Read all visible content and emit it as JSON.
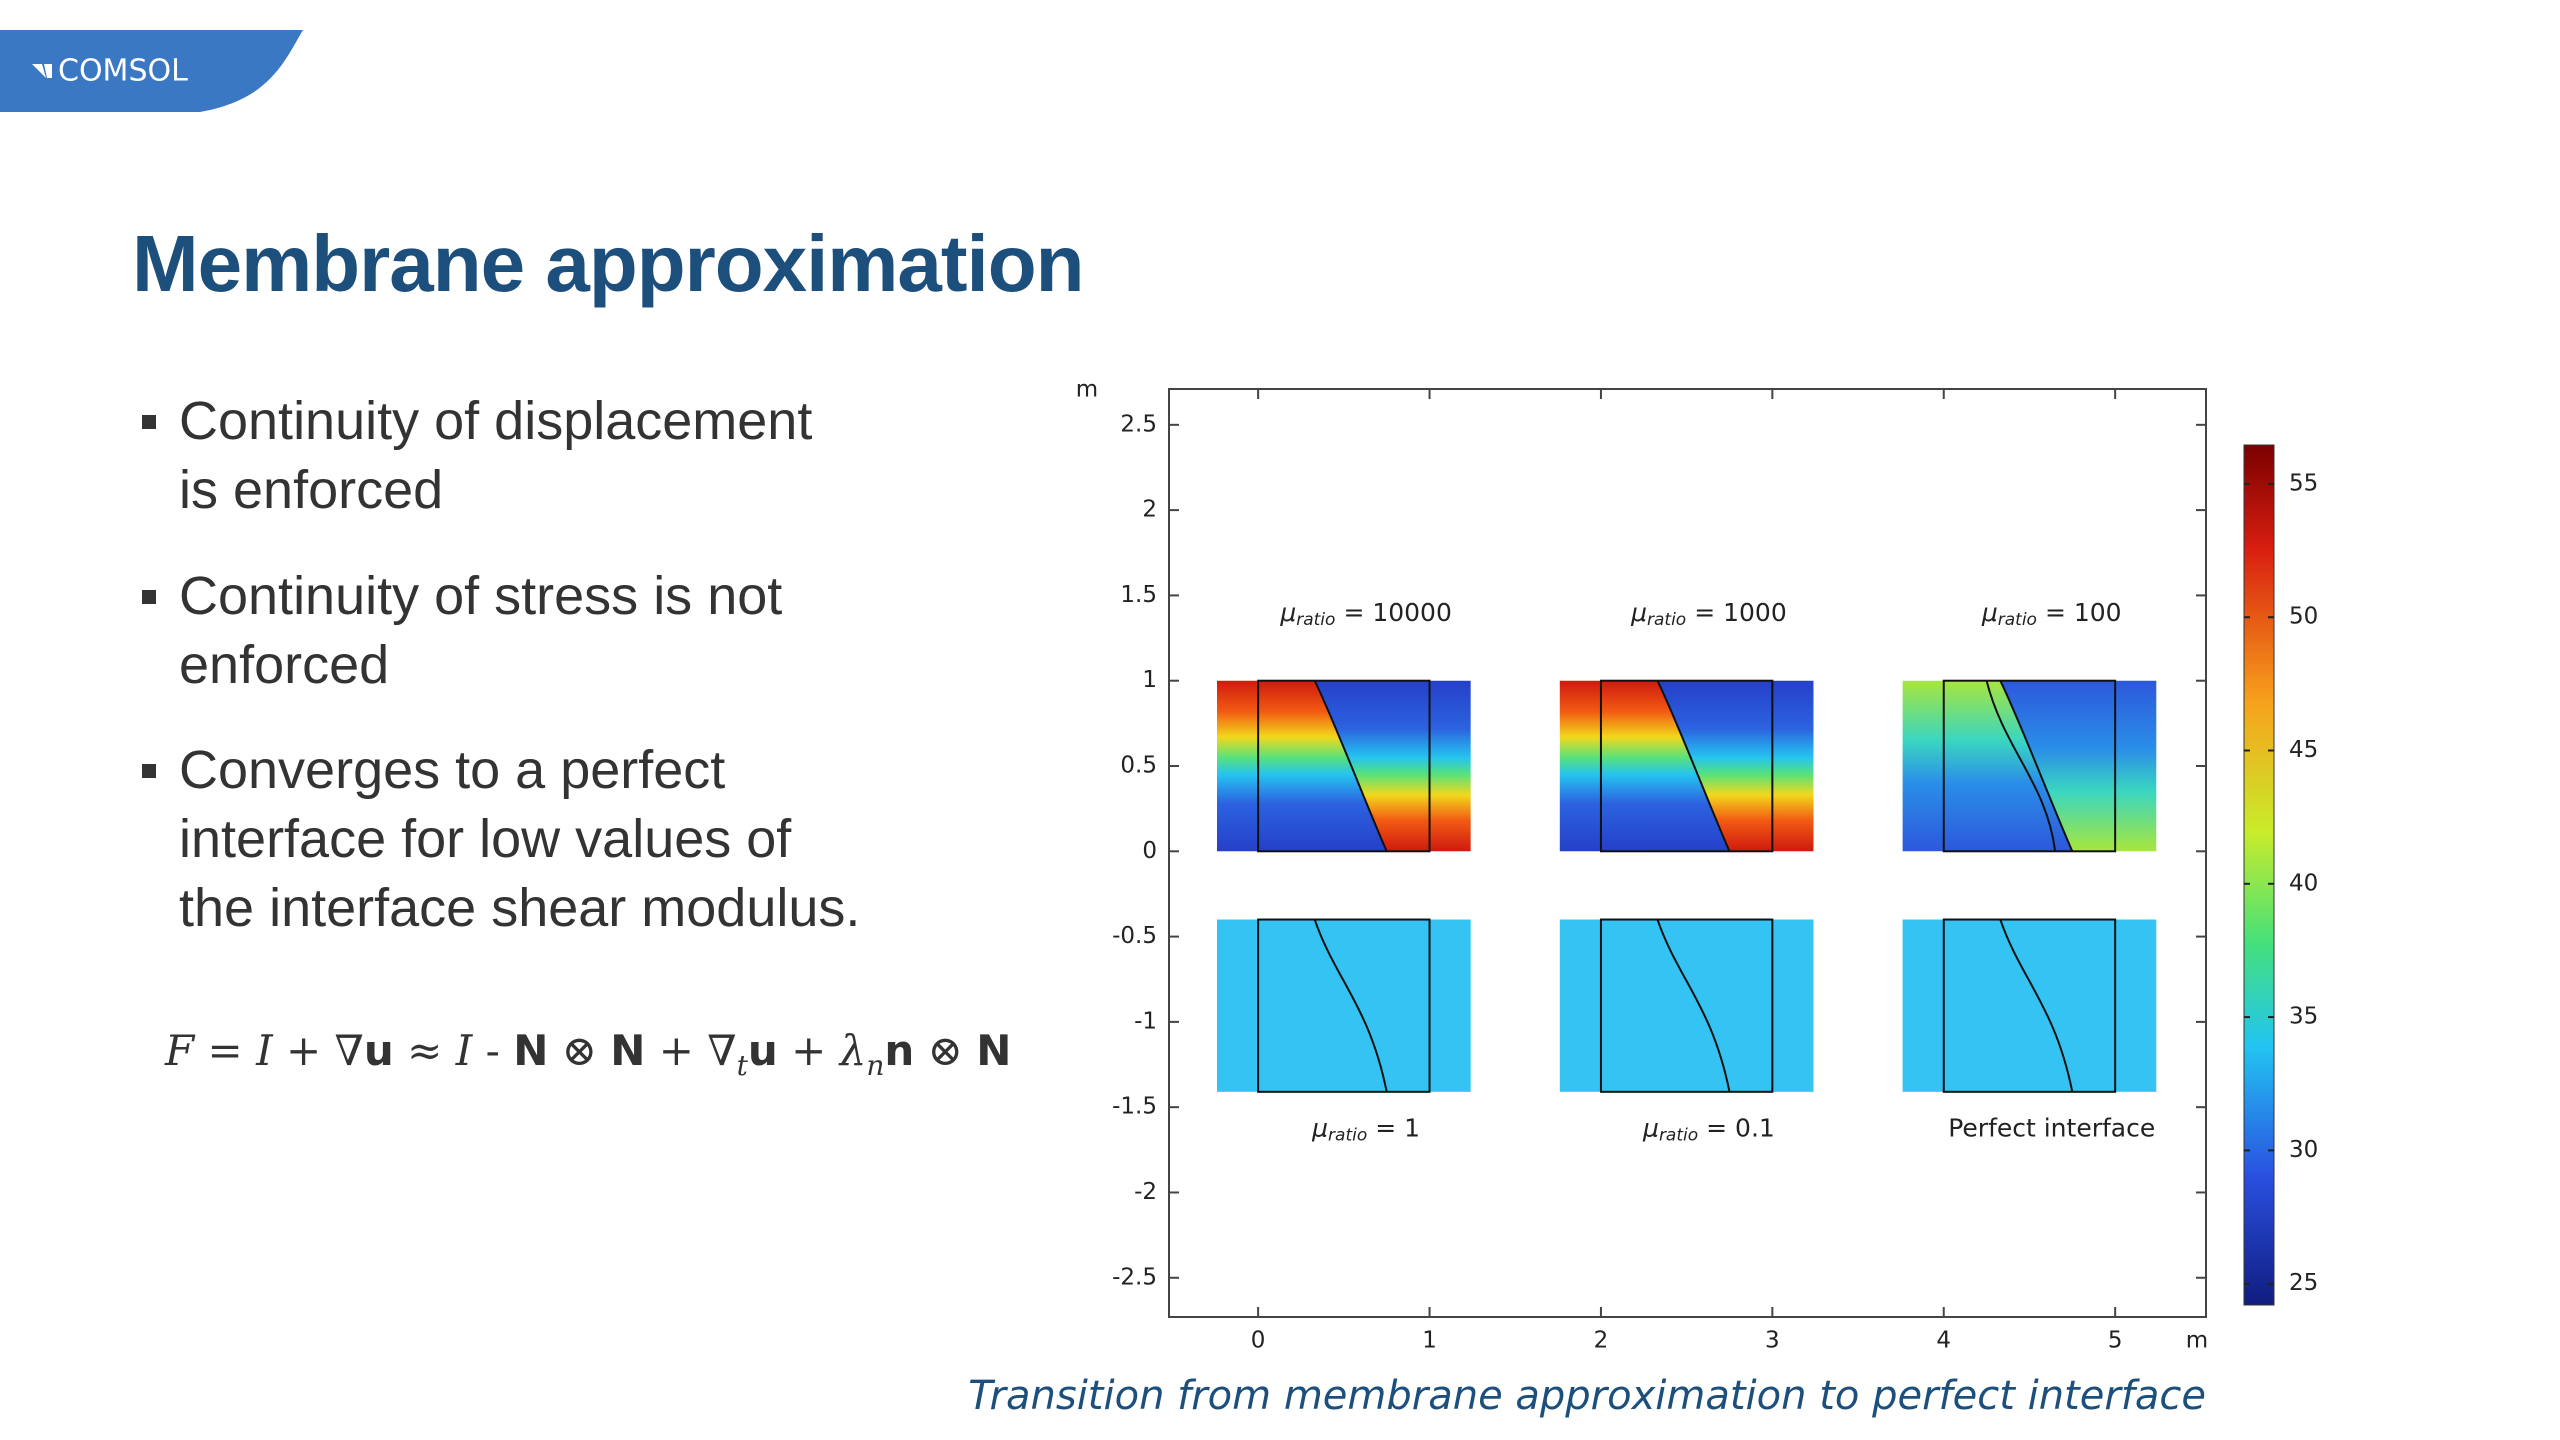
{
  "logo": "COMSOL",
  "title": "Membrane approximation",
  "bullets": [
    [
      "Continuity of displacement",
      "is enforced"
    ],
    [
      "Continuity of stress is not",
      "enforced"
    ],
    [
      "Converges to a perfect",
      "interface for low values of",
      "the interface shear modulus."
    ]
  ],
  "formula": [
    {
      "text": "F",
      "style": "italic"
    },
    {
      "text": " = "
    },
    {
      "text": "I",
      "style": "italic"
    },
    {
      "text": " + ∇"
    },
    {
      "text": "u",
      "style": "bold"
    },
    {
      "text": " ≈ "
    },
    {
      "text": "I",
      "style": "italic"
    },
    {
      "text": " - "
    },
    {
      "text": "N",
      "style": "bold"
    },
    {
      "text": " ⊗ "
    },
    {
      "text": "N",
      "style": "bold"
    },
    {
      "text": " + ∇"
    },
    {
      "text": "t",
      "style": "italic-sub"
    },
    {
      "text": "u",
      "style": "bold"
    },
    {
      "text": " + "
    },
    {
      "text": "λ",
      "style": "italic"
    },
    {
      "text": "n",
      "style": "italic-sub"
    },
    {
      "text": "n",
      "style": "bold"
    },
    {
      "text": " ⊗ "
    },
    {
      "text": "N",
      "style": "bold"
    }
  ],
  "figure": {
    "x_unit": "m",
    "y_unit": "m",
    "xlim": [
      -0.52,
      5.53
    ],
    "ylim": [
      -2.73,
      2.71
    ],
    "xticks": [
      0,
      1,
      2,
      3,
      4,
      5
    ],
    "yticks": [
      -2.5,
      -2,
      -1.5,
      -1,
      -0.5,
      0,
      0.5,
      1,
      1.5,
      2,
      2.5
    ],
    "colorbar": {
      "lim": [
        24.2,
        56.46
      ],
      "ticks": [
        25,
        30,
        35,
        40,
        45,
        50,
        55
      ]
    },
    "panels": [
      {
        "symbol": "μ",
        "subscript": "ratio",
        "text": "= 10000"
      },
      {
        "symbol": "μ",
        "subscript": "ratio",
        "text": "= 1000"
      },
      {
        "symbol": "μ",
        "subscript": "ratio",
        "text": "= 100"
      },
      {
        "symbol": "μ",
        "subscript": "ratio",
        "text": "= 1"
      },
      {
        "symbol": "μ",
        "subscript": "ratio",
        "text": "= 0.1"
      },
      {
        "text": "Perfect interface"
      }
    ],
    "caption": "Transition from membrane approximation to perfect interface"
  }
}
